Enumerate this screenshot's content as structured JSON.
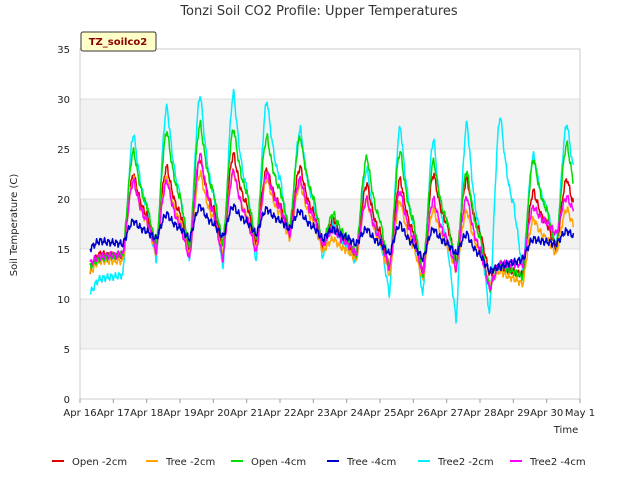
{
  "chart_data": {
    "type": "line",
    "title": "Tonzi Soil CO2 Profile: Upper Temperatures",
    "xlabel": "Time",
    "ylabel": "Soil Temperature (C)",
    "badge": "TZ_soilco2",
    "ylim": [
      0,
      35
    ],
    "yticks": [
      0,
      5,
      10,
      15,
      20,
      25,
      30,
      35
    ],
    "xlim": [
      16,
      31
    ],
    "xticks": [
      {
        "x": 16,
        "label": "Apr 16"
      },
      {
        "x": 17,
        "label": "Apr 17"
      },
      {
        "x": 18,
        "label": "Apr 18"
      },
      {
        "x": 19,
        "label": "Apr 19"
      },
      {
        "x": 20,
        "label": "Apr 20"
      },
      {
        "x": 21,
        "label": "Apr 21"
      },
      {
        "x": 22,
        "label": "Apr 22"
      },
      {
        "x": 23,
        "label": "Apr 23"
      },
      {
        "x": 24,
        "label": "Apr 24"
      },
      {
        "x": 25,
        "label": "Apr 25"
      },
      {
        "x": 26,
        "label": "Apr 26"
      },
      {
        "x": 27,
        "label": "Apr 27"
      },
      {
        "x": 28,
        "label": "Apr 28"
      },
      {
        "x": 29,
        "label": "Apr 29"
      },
      {
        "x": 30,
        "label": "Apr 30"
      },
      {
        "x": 31,
        "label": "May 1"
      }
    ],
    "x_start": 16.3,
    "x_end": 30.8,
    "grid": true,
    "legend_position": "bottom",
    "series": [
      {
        "name": "Open -2cm",
        "color": "#dd0000",
        "daily_min": [
          12.8,
          14.2,
          15.2,
          15.0,
          15.3,
          15.6,
          16.6,
          15.2,
          14.2,
          13.0,
          12.6,
          13.8,
          12.5,
          12.4,
          15.0
        ],
        "daily_max": [
          14.5,
          22.5,
          23.2,
          24.0,
          24.5,
          23.0,
          23.2,
          18.0,
          21.5,
          22.0,
          22.5,
          22.0,
          13.2,
          20.8,
          22.0
        ]
      },
      {
        "name": "Tree -2cm",
        "color": "#ffa500",
        "daily_min": [
          12.6,
          13.8,
          14.5,
          14.4,
          14.6,
          15.0,
          16.0,
          14.8,
          14.0,
          12.4,
          11.8,
          12.8,
          11.5,
          11.5,
          14.5
        ],
        "daily_max": [
          13.8,
          22.0,
          22.2,
          22.6,
          22.8,
          22.0,
          21.5,
          16.0,
          20.0,
          19.8,
          19.0,
          18.8,
          12.8,
          18.0,
          19.0
        ]
      },
      {
        "name": "Open -4cm",
        "color": "#00dd00",
        "daily_min": [
          13.2,
          14.5,
          15.2,
          15.0,
          15.4,
          15.8,
          16.8,
          15.5,
          14.5,
          13.0,
          12.4,
          13.4,
          11.0,
          12.2,
          15.0
        ],
        "daily_max": [
          14.0,
          24.8,
          26.8,
          27.5,
          27.0,
          26.2,
          26.2,
          18.5,
          24.2,
          24.8,
          23.8,
          22.8,
          13.5,
          24.0,
          25.5
        ]
      },
      {
        "name": "Tree -4cm",
        "color": "#0000cc",
        "daily_min": [
          15.0,
          15.5,
          16.0,
          16.0,
          16.2,
          16.5,
          17.0,
          16.0,
          15.5,
          14.5,
          14.0,
          14.5,
          12.8,
          14.0,
          15.5
        ],
        "daily_max": [
          15.8,
          17.8,
          18.5,
          19.3,
          19.3,
          19.0,
          18.8,
          17.0,
          17.0,
          17.5,
          17.0,
          16.5,
          13.2,
          16.0,
          16.8
        ]
      },
      {
        "name": "Tree2 -2cm",
        "color": "#00eeff",
        "daily_min": [
          10.5,
          12.4,
          13.8,
          13.8,
          13.0,
          13.8,
          16.0,
          14.2,
          13.6,
          10.5,
          10.3,
          7.9,
          8.5,
          12.8,
          15.0
        ],
        "daily_max": [
          12.0,
          26.5,
          29.2,
          30.4,
          30.6,
          29.8,
          27.0,
          17.5,
          23.0,
          27.2,
          26.0,
          27.6,
          28.3,
          24.4,
          27.5
        ]
      },
      {
        "name": "Tree2 -4cm",
        "color": "#ff00ff",
        "daily_min": [
          13.6,
          14.5,
          14.8,
          14.0,
          14.0,
          14.6,
          16.4,
          15.4,
          14.5,
          13.0,
          12.5,
          13.0,
          11.0,
          13.5,
          16.5
        ],
        "daily_max": [
          14.2,
          21.8,
          21.8,
          24.5,
          22.8,
          22.6,
          22.0,
          17.0,
          20.0,
          20.8,
          20.0,
          20.2,
          13.5,
          19.2,
          20.2
        ]
      }
    ]
  }
}
